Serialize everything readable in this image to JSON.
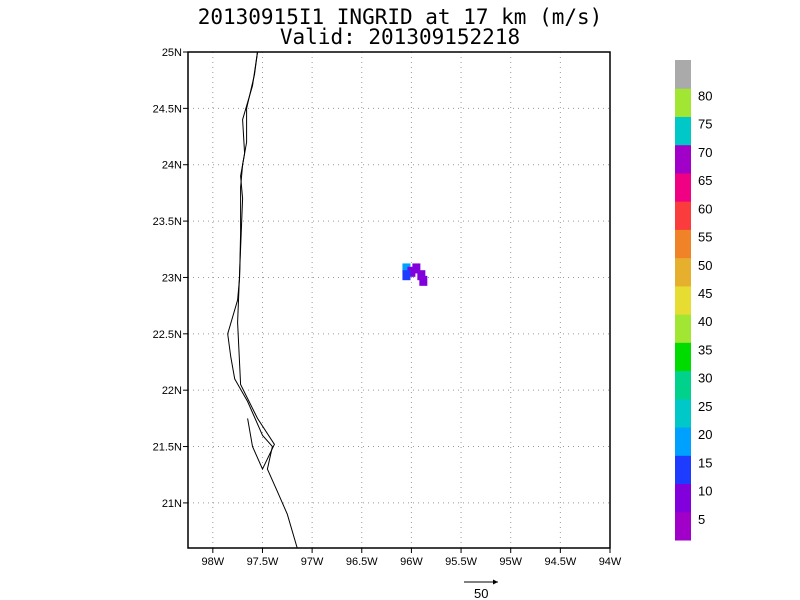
{
  "title": {
    "line1": "20130915I1 INGRID at 17 km (m/s)",
    "line2": "Valid: 201309152218"
  },
  "map": {
    "lon_range": [
      -98.25,
      -94.0
    ],
    "lat_range": [
      20.6,
      25.0
    ],
    "lon_ticks": [
      {
        "v": -98.0,
        "label": "98W"
      },
      {
        "v": -97.5,
        "label": "97.5W"
      },
      {
        "v": -97.0,
        "label": "97W"
      },
      {
        "v": -96.5,
        "label": "96.5W"
      },
      {
        "v": -96.0,
        "label": "96W"
      },
      {
        "v": -95.5,
        "label": "95.5W"
      },
      {
        "v": -95.0,
        "label": "95W"
      },
      {
        "v": -94.5,
        "label": "94.5W"
      },
      {
        "v": -94.0,
        "label": "94W"
      }
    ],
    "lat_ticks": [
      {
        "v": 25.0,
        "label": "25N"
      },
      {
        "v": 24.5,
        "label": "24.5N"
      },
      {
        "v": 24.0,
        "label": "24N"
      },
      {
        "v": 23.5,
        "label": "23.5N"
      },
      {
        "v": 23.0,
        "label": "23N"
      },
      {
        "v": 22.5,
        "label": "22.5N"
      },
      {
        "v": 22.0,
        "label": "22N"
      },
      {
        "v": 21.5,
        "label": "21.5N"
      },
      {
        "v": 21.0,
        "label": "21N"
      }
    ],
    "grid": true,
    "coastline_outer": [
      [
        -97.55,
        25.0
      ],
      [
        -97.58,
        24.8
      ],
      [
        -97.66,
        24.5
      ],
      [
        -97.66,
        24.2
      ],
      [
        -97.7,
        24.0
      ],
      [
        -97.72,
        23.8
      ],
      [
        -97.72,
        23.4
      ],
      [
        -97.73,
        23.0
      ],
      [
        -97.75,
        22.8
      ],
      [
        -97.85,
        22.5
      ],
      [
        -97.82,
        22.3
      ],
      [
        -97.78,
        22.1
      ],
      [
        -97.65,
        21.9
      ],
      [
        -97.5,
        21.6
      ],
      [
        -97.4,
        21.5
      ],
      [
        -97.45,
        21.3
      ],
      [
        -97.35,
        21.1
      ],
      [
        -97.25,
        20.9
      ],
      [
        -97.15,
        20.6
      ]
    ],
    "coastline_inner": [
      [
        -97.55,
        25.0
      ],
      [
        -97.6,
        24.7
      ],
      [
        -97.7,
        24.4
      ],
      [
        -97.68,
        24.1
      ],
      [
        -97.72,
        23.9
      ],
      [
        -97.7,
        23.7
      ],
      [
        -97.75,
        22.6
      ],
      [
        -97.72,
        22.05
      ],
      [
        -97.55,
        21.75
      ],
      [
        -97.38,
        21.52
      ],
      [
        -97.5,
        21.3
      ],
      [
        -97.6,
        21.5
      ],
      [
        -97.65,
        21.75
      ]
    ],
    "wind_cells": [
      {
        "lon": -96.05,
        "lat": 23.08,
        "speed": 15
      },
      {
        "lon": -96.0,
        "lat": 23.05,
        "speed": 8
      },
      {
        "lon": -95.95,
        "lat": 23.08,
        "speed": 5
      },
      {
        "lon": -95.9,
        "lat": 23.02,
        "speed": 5
      },
      {
        "lon": -96.05,
        "lat": 23.02,
        "speed": 10
      },
      {
        "lon": -95.88,
        "lat": 22.97,
        "speed": 5
      }
    ]
  },
  "colorbar": {
    "colors": [
      "#a000c8",
      "#8200dc",
      "#1e3cff",
      "#00a0ff",
      "#00c8c8",
      "#00d28c",
      "#00dc00",
      "#a0e632",
      "#e6dc32",
      "#e6af2d",
      "#f08228",
      "#fa3c3c",
      "#f00082",
      "#a000c8",
      "#00c8c8",
      "#a0e632",
      "#aaaaaa"
    ],
    "labels": [
      "5",
      "10",
      "15",
      "20",
      "25",
      "30",
      "35",
      "40",
      "45",
      "50",
      "55",
      "60",
      "65",
      "70",
      "75",
      "80"
    ]
  },
  "vector": {
    "reference_label": "50"
  }
}
